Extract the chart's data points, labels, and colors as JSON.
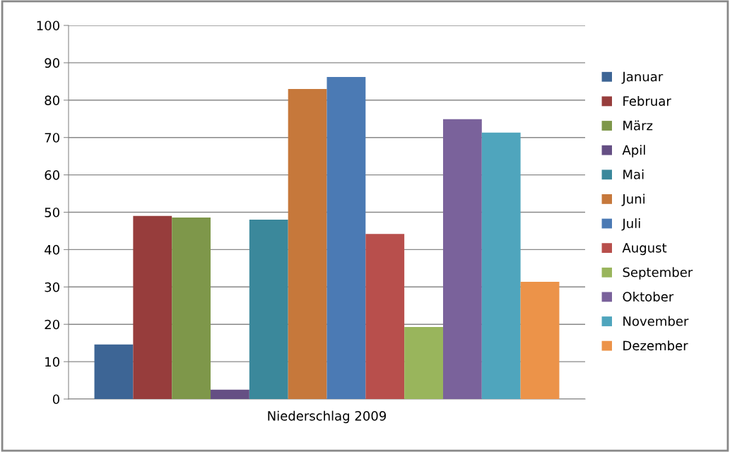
{
  "chart_data": {
    "type": "bar",
    "categories": [
      "Niederschlag 2009"
    ],
    "series": [
      {
        "name": "Januar",
        "color": "#3d6595",
        "values": [
          14.6
        ]
      },
      {
        "name": "Februar",
        "color": "#973d3c",
        "values": [
          49.0
        ]
      },
      {
        "name": "März",
        "color": "#7e974a",
        "values": [
          48.6
        ]
      },
      {
        "name": "Apil",
        "color": "#654f84",
        "values": [
          2.5
        ]
      },
      {
        "name": "Mai",
        "color": "#3b889b",
        "values": [
          48.0
        ]
      },
      {
        "name": "Juni",
        "color": "#c6783b",
        "values": [
          83.0
        ]
      },
      {
        "name": "Juli",
        "color": "#4b7ab4",
        "values": [
          86.2
        ]
      },
      {
        "name": "August",
        "color": "#b84f4c",
        "values": [
          44.2
        ]
      },
      {
        "name": "September",
        "color": "#99b55c",
        "values": [
          19.3
        ]
      },
      {
        "name": "Oktober",
        "color": "#7a629b",
        "values": [
          74.9
        ]
      },
      {
        "name": "November",
        "color": "#4fa5bd",
        "values": [
          71.3
        ]
      },
      {
        "name": "Dezember",
        "color": "#ec9349",
        "values": [
          31.4
        ]
      }
    ],
    "ylim": [
      0,
      100
    ],
    "yticks": [
      0,
      10,
      20,
      30,
      40,
      50,
      60,
      70,
      80,
      90,
      100
    ],
    "grid": "y",
    "legend": "right"
  }
}
